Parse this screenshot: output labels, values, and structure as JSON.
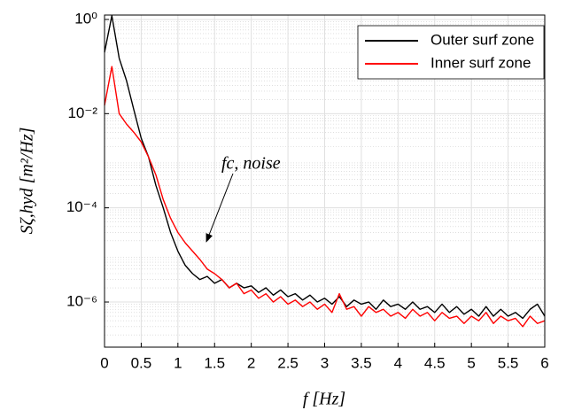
{
  "chart_data": {
    "type": "line",
    "xlabel": "f [Hz]",
    "ylabel": "Sζ,hyd [m²/Hz]",
    "annotation": "fc, noise",
    "log_y": true,
    "grid": true,
    "minor_grid": true,
    "legend_position": "upper right",
    "xlim": [
      0,
      6
    ],
    "ylim": [
      1.1e-07,
      1.24
    ],
    "xticks": [
      0,
      0.5,
      1,
      1.5,
      2,
      2.5,
      3,
      3.5,
      4,
      4.5,
      5,
      5.5,
      6
    ],
    "yticks": [
      {
        "value": 1,
        "label": "10⁰"
      },
      {
        "value": 0.01,
        "label": "10⁻²"
      },
      {
        "value": 0.0001,
        "label": "10⁻⁴"
      },
      {
        "value": 1e-06,
        "label": "10⁻⁶"
      }
    ],
    "x": [
      0,
      0.1,
      0.2,
      0.3,
      0.4,
      0.5,
      0.6,
      0.7,
      0.8,
      0.9,
      1,
      1.1,
      1.2,
      1.3,
      1.4,
      1.5,
      1.6,
      1.7,
      1.8,
      1.9,
      2,
      2.1,
      2.2,
      2.3,
      2.4,
      2.5,
      2.6,
      2.7,
      2.8,
      2.9,
      3,
      3.1,
      3.2,
      3.3,
      3.4,
      3.5,
      3.6,
      3.7,
      3.8,
      3.9,
      4,
      4.1,
      4.2,
      4.3,
      4.4,
      4.5,
      4.6,
      4.7,
      4.8,
      4.9,
      5,
      5.1,
      5.2,
      5.3,
      5.4,
      5.5,
      5.6,
      5.7,
      5.8,
      5.9,
      6
    ],
    "series": [
      {
        "name": "Outer surf zone",
        "color": "#000000",
        "values": [
          0.2,
          1.2,
          0.15,
          0.05,
          0.012,
          0.003,
          0.0012,
          0.0003,
          0.0001,
          3e-05,
          1.2e-05,
          6e-06,
          4e-06,
          3e-06,
          3.5e-06,
          2.5e-06,
          3e-06,
          2e-06,
          2.5e-06,
          2e-06,
          2.2e-06,
          1.6e-06,
          2e-06,
          1.4e-06,
          1.8e-06,
          1.3e-06,
          1.5e-06,
          1.1e-06,
          1.4e-06,
          1e-06,
          1.2e-06,
          9e-07,
          1.3e-06,
          8e-07,
          1.1e-06,
          9e-07,
          1e-06,
          7e-07,
          1.1e-06,
          8e-07,
          9e-07,
          7e-07,
          1e-06,
          7e-07,
          8e-07,
          6e-07,
          9e-07,
          6e-07,
          8e-07,
          5.5e-07,
          7e-07,
          5e-07,
          8e-07,
          5e-07,
          7e-07,
          5e-07,
          6e-07,
          4.5e-07,
          7e-07,
          9e-07,
          5e-07
        ]
      },
      {
        "name": "Inner surf zone",
        "color": "#ff0000",
        "values": [
          0.015,
          0.1,
          0.01,
          0.006,
          0.004,
          0.0025,
          0.0012,
          0.0005,
          0.00015,
          6e-05,
          3e-05,
          1.8e-05,
          1.2e-05,
          8e-06,
          5e-06,
          4e-06,
          3e-06,
          2e-06,
          2.5e-06,
          1.5e-06,
          1.8e-06,
          1.2e-06,
          1.5e-06,
          1e-06,
          1.3e-06,
          9e-07,
          1.1e-06,
          8e-07,
          1e-06,
          7e-07,
          9e-07,
          6e-07,
          1.5e-06,
          7e-07,
          8e-07,
          5e-07,
          8e-07,
          6e-07,
          7e-07,
          5e-07,
          6e-07,
          4.5e-07,
          7e-07,
          5e-07,
          6e-07,
          4e-07,
          6e-07,
          4.5e-07,
          5e-07,
          3.5e-07,
          5e-07,
          4e-07,
          6e-07,
          3.5e-07,
          5e-07,
          4e-07,
          4.5e-07,
          3e-07,
          5e-07,
          3.5e-07,
          4e-07
        ]
      }
    ]
  }
}
